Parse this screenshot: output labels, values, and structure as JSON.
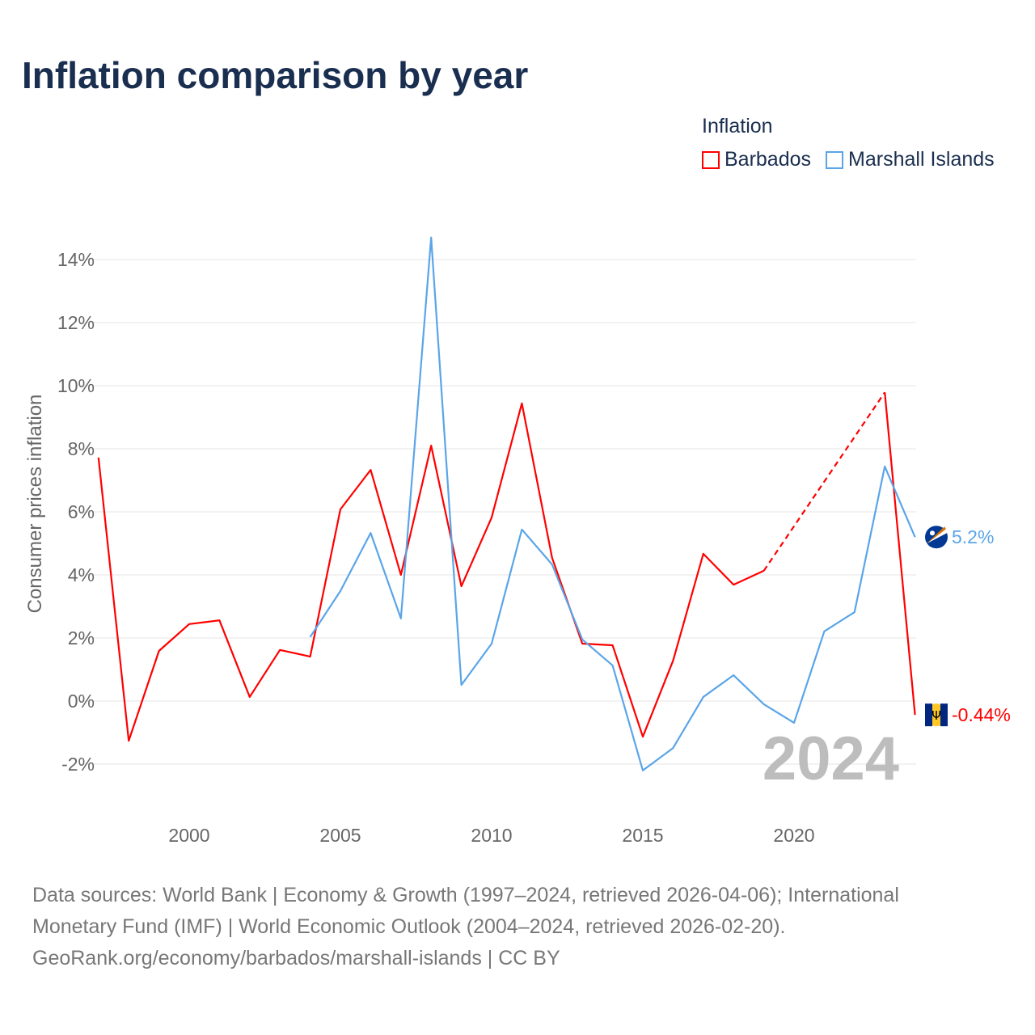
{
  "title": "Inflation comparison by year",
  "legend": {
    "title": "Inflation",
    "items": [
      "Barbados",
      "Marshall Islands"
    ]
  },
  "source": {
    "line1": "Data sources: World Bank | Economy & Growth (1997–2024, retrieved 2026-04-06); International",
    "line2": "Monetary Fund (IMF) | World Economic Outlook (2004–2024, retrieved 2026-02-20).",
    "line3": "GeoRank.org/economy/barbados/marshall-islands | CC BY"
  },
  "chart_data": {
    "type": "line",
    "title": "Inflation comparison by year",
    "ylabel": "Consumer prices inflation",
    "xlabel": "",
    "year_label": "2024",
    "xlim": [
      1997,
      2024
    ],
    "ylim": [
      -3,
      15
    ],
    "x": [
      1997,
      1998,
      1999,
      2000,
      2001,
      2002,
      2003,
      2004,
      2005,
      2006,
      2007,
      2008,
      2009,
      2010,
      2011,
      2012,
      2013,
      2014,
      2015,
      2016,
      2017,
      2018,
      2019,
      2020,
      2021,
      2022,
      2023,
      2024
    ],
    "xticks": [
      2000,
      2005,
      2010,
      2015,
      2020
    ],
    "xtick_labels": [
      "2000",
      "2005",
      "2010",
      "2015",
      "2020"
    ],
    "yticks": [
      -2,
      0,
      2,
      4,
      6,
      8,
      10,
      12,
      14
    ],
    "ytick_labels": [
      "-2%",
      "0%",
      "2%",
      "4%",
      "6%",
      "8%",
      "10%",
      "12%",
      "14%"
    ],
    "series": [
      {
        "name": "Barbados",
        "color": "#ff0000",
        "end_label": "-0.44%",
        "values": [
          7.72,
          -1.26,
          1.59,
          2.44,
          2.56,
          0.13,
          1.62,
          1.41,
          6.08,
          7.33,
          4.0,
          8.1,
          3.64,
          5.82,
          9.44,
          4.54,
          1.82,
          1.77,
          -1.13,
          1.28,
          4.67,
          3.69,
          4.13,
          null,
          null,
          null,
          9.79,
          -0.44
        ]
      },
      {
        "name": "Marshall Islands",
        "color": "#5aa5e8",
        "end_label": "5.2%",
        "values": [
          null,
          null,
          null,
          null,
          null,
          null,
          null,
          2.03,
          3.49,
          5.33,
          2.62,
          14.7,
          0.51,
          1.82,
          5.44,
          4.33,
          1.95,
          1.13,
          -2.2,
          -1.49,
          0.13,
          0.82,
          -0.1,
          -0.69,
          2.21,
          2.82,
          7.44,
          5.2
        ]
      }
    ]
  }
}
